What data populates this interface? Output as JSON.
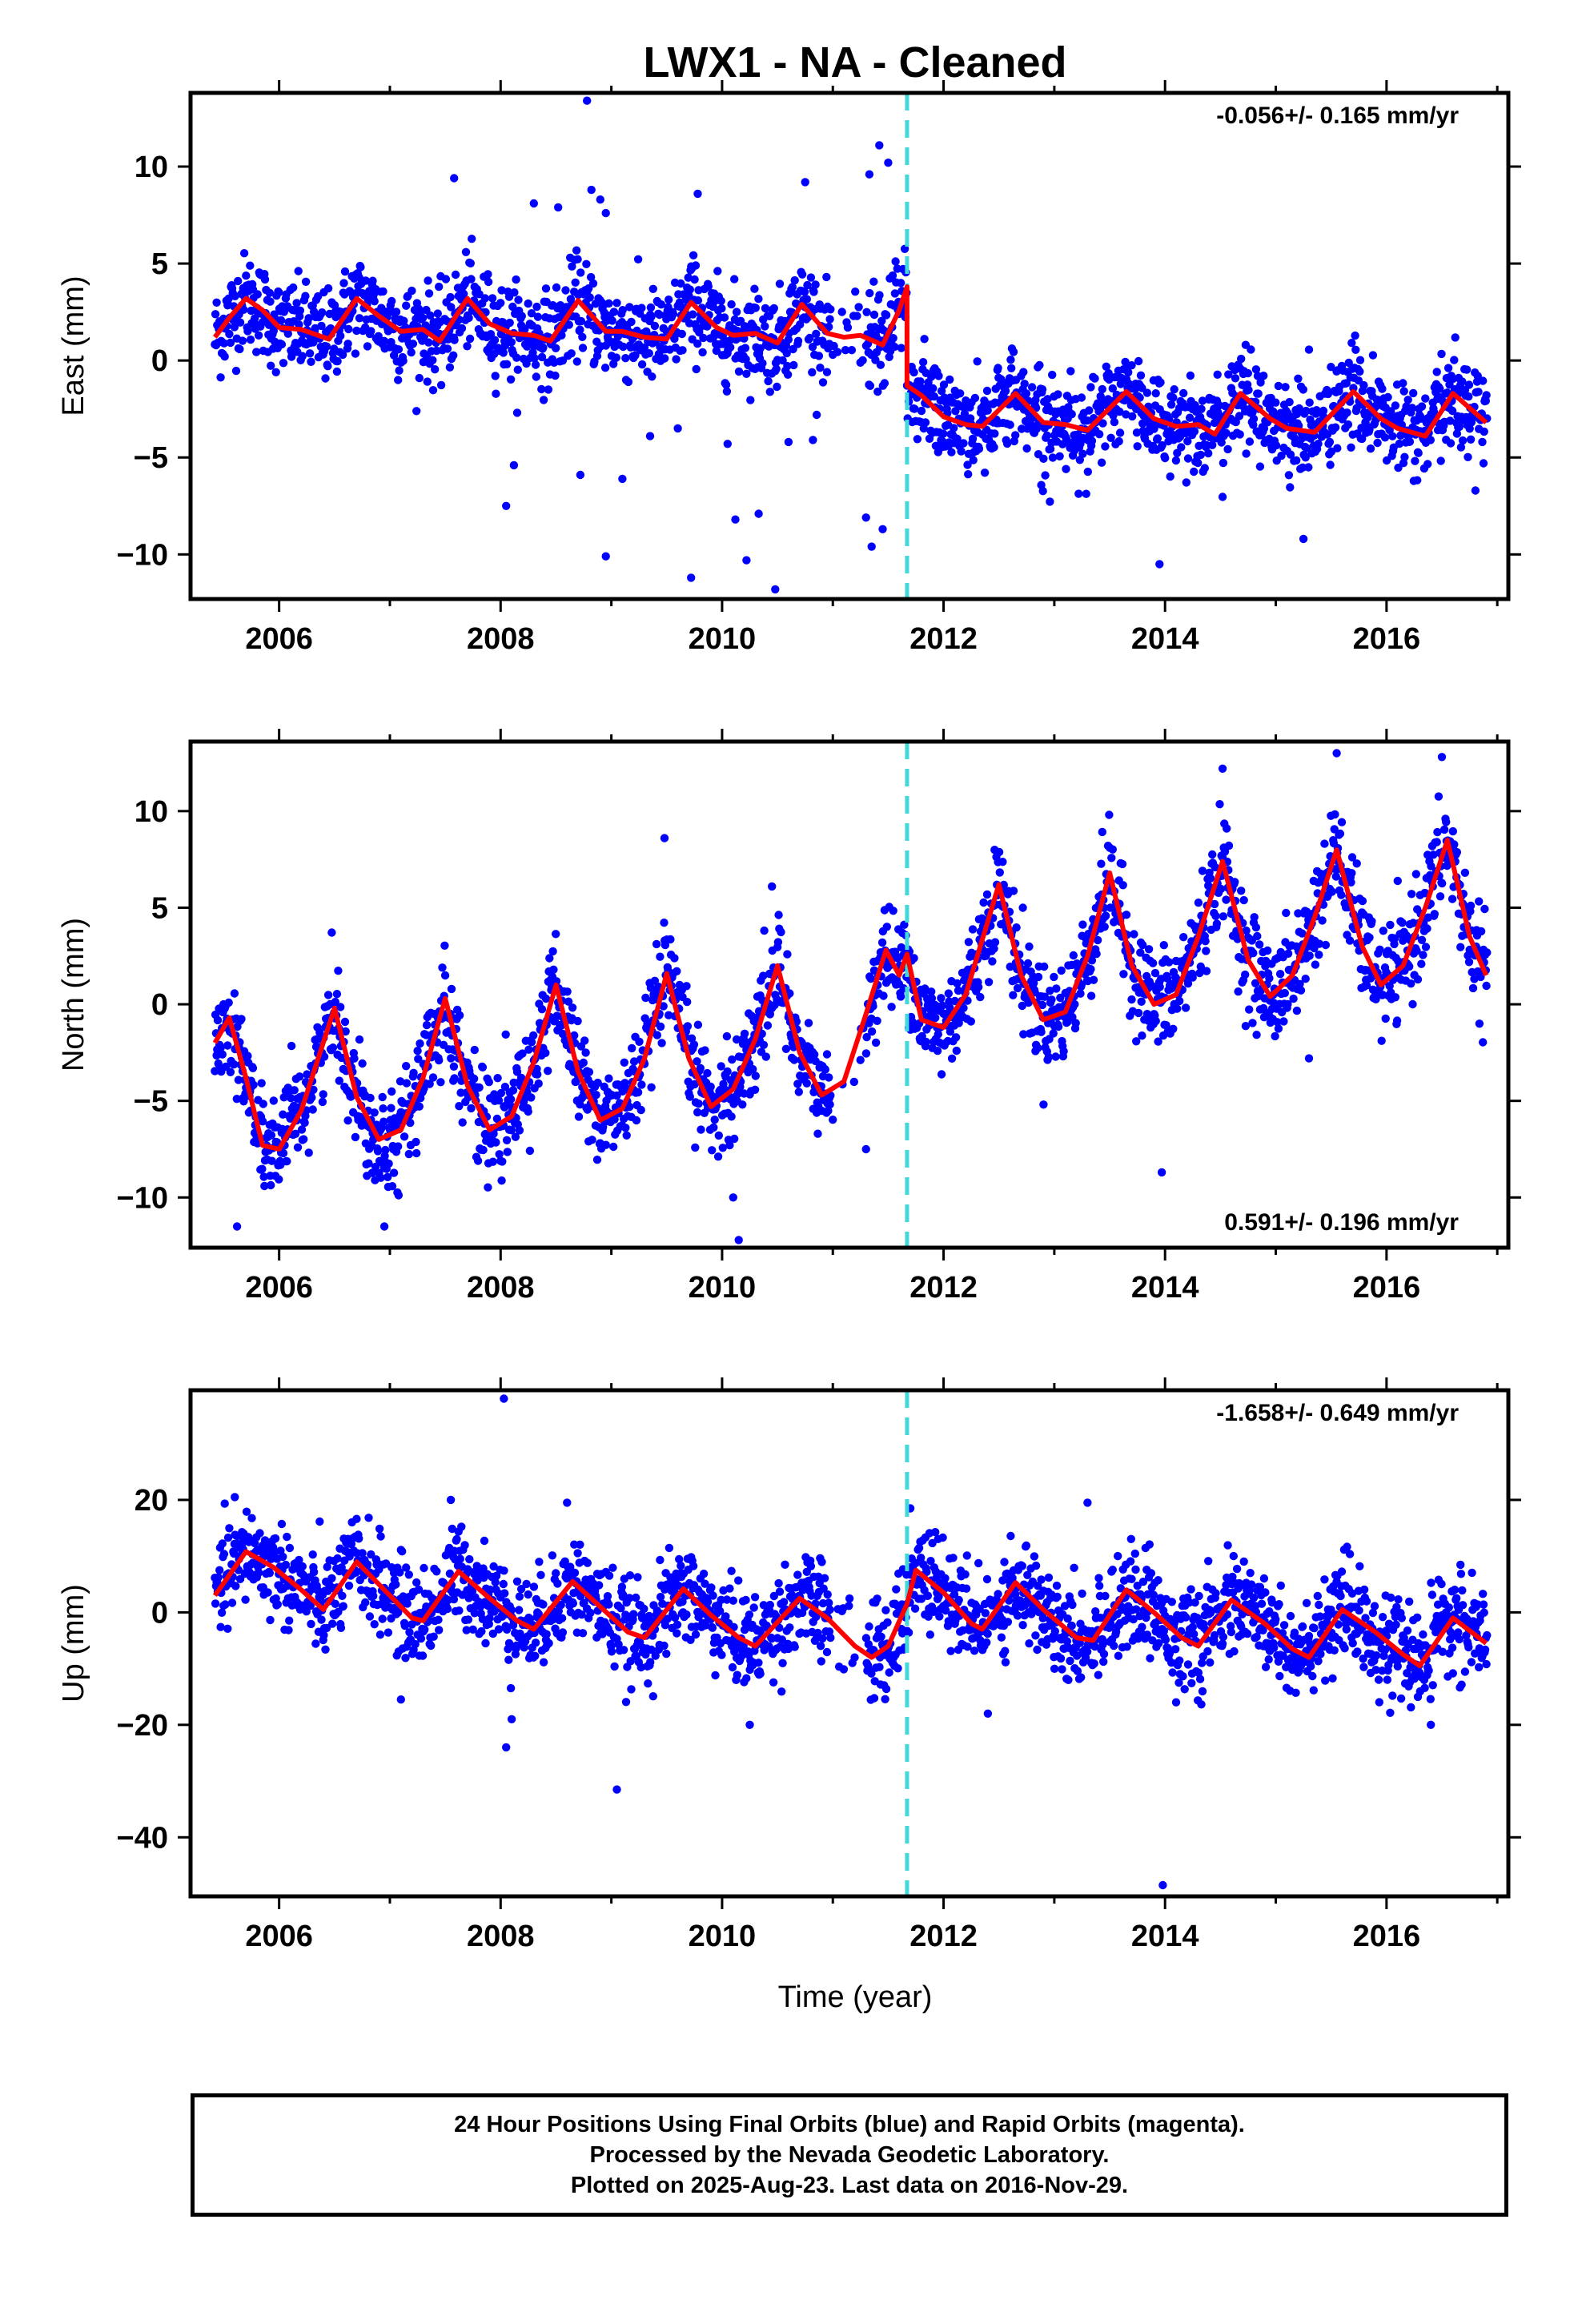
{
  "title": "LWX1  - NA - Cleaned",
  "xlabel": "Time (year)",
  "footer": [
    "24 Hour Positions Using Final Orbits (blue) and Rapid Orbits (magenta).",
    "Processed by the Nevada Geodetic Laboratory.",
    "Plotted on 2025-Aug-23. Last data on 2016-Nov-29."
  ],
  "colors": {
    "points": "#0000ff",
    "model": "#ff0000",
    "event_line": "#40d8d8",
    "frame": "#000000"
  },
  "chart_data": [
    {
      "type": "scatter",
      "panel": "east",
      "ylabel": "East (mm)",
      "rate_label": "-0.056+/- 0.165 mm/yr",
      "rate_label_position": "top-right",
      "xlim": [
        2005.2,
        2017.1
      ],
      "ylim": [
        -12.3,
        13.8
      ],
      "xticks": [
        2006,
        2008,
        2010,
        2012,
        2014,
        2016
      ],
      "yticks": [
        -10,
        -5,
        0,
        5,
        10
      ],
      "event_line_x": 2011.67,
      "series": [
        {
          "name": "Final Orbits",
          "description_of_model": "seasonal fit",
          "model_curve": [
            [
              2005.42,
              1.2
            ],
            [
              2005.55,
              2.2
            ],
            [
              2005.7,
              3.2
            ],
            [
              2005.85,
              2.6
            ],
            [
              2006.0,
              1.7
            ],
            [
              2006.2,
              1.6
            ],
            [
              2006.45,
              1.1
            ],
            [
              2006.7,
              3.2
            ],
            [
              2006.9,
              2.3
            ],
            [
              2007.1,
              1.5
            ],
            [
              2007.3,
              1.6
            ],
            [
              2007.45,
              1.0
            ],
            [
              2007.7,
              3.2
            ],
            [
              2007.9,
              1.9
            ],
            [
              2008.1,
              1.4
            ],
            [
              2008.3,
              1.3
            ],
            [
              2008.45,
              1.0
            ],
            [
              2008.7,
              3.1
            ],
            [
              2008.95,
              1.5
            ],
            [
              2009.1,
              1.5
            ],
            [
              2009.3,
              1.2
            ],
            [
              2009.5,
              1.1
            ],
            [
              2009.72,
              3.0
            ],
            [
              2009.95,
              1.7
            ],
            [
              2010.1,
              1.3
            ],
            [
              2010.3,
              1.4
            ],
            [
              2010.5,
              0.9
            ],
            [
              2010.72,
              2.9
            ],
            [
              2010.95,
              1.4
            ],
            [
              2011.1,
              1.2
            ],
            [
              2011.25,
              1.3
            ],
            [
              2011.45,
              0.8
            ],
            [
              2011.6,
              2.6
            ],
            [
              2011.67,
              3.8
            ],
            [
              2011.67,
              -1.3
            ],
            [
              2011.8,
              -1.8
            ],
            [
              2012.0,
              -2.9
            ],
            [
              2012.2,
              -3.3
            ],
            [
              2012.35,
              -3.4
            ],
            [
              2012.65,
              -1.7
            ],
            [
              2012.9,
              -3.2
            ],
            [
              2013.1,
              -3.3
            ],
            [
              2013.3,
              -3.6
            ],
            [
              2013.65,
              -1.6
            ],
            [
              2013.9,
              -3.0
            ],
            [
              2014.1,
              -3.4
            ],
            [
              2014.3,
              -3.3
            ],
            [
              2014.45,
              -3.8
            ],
            [
              2014.68,
              -1.7
            ],
            [
              2014.95,
              -3.0
            ],
            [
              2015.1,
              -3.5
            ],
            [
              2015.35,
              -3.7
            ],
            [
              2015.7,
              -1.6
            ],
            [
              2015.95,
              -3.0
            ],
            [
              2016.1,
              -3.5
            ],
            [
              2016.35,
              -3.9
            ],
            [
              2016.6,
              -1.7
            ],
            [
              2016.9,
              -3.2
            ]
          ],
          "outliers": [
            [
              2008.78,
              13.4
            ],
            [
              2011.42,
              11.1
            ],
            [
              2011.5,
              10.2
            ],
            [
              2011.33,
              9.6
            ],
            [
              2007.58,
              9.4
            ],
            [
              2008.82,
              8.8
            ],
            [
              2008.9,
              8.3
            ],
            [
              2008.95,
              7.6
            ],
            [
              2009.78,
              8.6
            ],
            [
              2010.75,
              9.2
            ],
            [
              2008.3,
              8.1
            ],
            [
              2008.52,
              7.9
            ],
            [
              2008.05,
              -7.5
            ],
            [
              2008.12,
              -5.4
            ],
            [
              2008.72,
              -5.9
            ],
            [
              2009.1,
              -6.1
            ],
            [
              2008.95,
              -10.1
            ],
            [
              2009.72,
              -11.2
            ],
            [
              2010.05,
              -4.3
            ],
            [
              2010.12,
              -8.2
            ],
            [
              2010.22,
              -10.3
            ],
            [
              2010.33,
              -7.9
            ],
            [
              2010.48,
              -11.8
            ],
            [
              2010.6,
              -4.2
            ],
            [
              2010.82,
              -4.1
            ],
            [
              2011.3,
              -8.1
            ],
            [
              2011.45,
              -8.7
            ],
            [
              2011.35,
              -9.6
            ],
            [
              2013.95,
              -10.5
            ],
            [
              2015.25,
              -9.2
            ],
            [
              2009.35,
              -3.9
            ],
            [
              2009.6,
              -3.5
            ]
          ]
        }
      ]
    },
    {
      "type": "scatter",
      "panel": "north",
      "ylabel": "North (mm)",
      "rate_label": "0.591+/- 0.196 mm/yr",
      "rate_label_position": "bottom-right",
      "xlim": [
        2005.2,
        2017.1
      ],
      "ylim": [
        -12.6,
        13.6
      ],
      "xticks": [
        2006,
        2008,
        2010,
        2012,
        2014,
        2016
      ],
      "yticks": [
        -10,
        -5,
        0,
        5,
        10
      ],
      "event_line_x": 2011.67,
      "series": [
        {
          "name": "Final Orbits",
          "model_curve": [
            [
              2005.42,
              -2.0
            ],
            [
              2005.55,
              -0.7
            ],
            [
              2005.7,
              -3.8
            ],
            [
              2005.85,
              -7.3
            ],
            [
              2006.0,
              -7.5
            ],
            [
              2006.2,
              -5.5
            ],
            [
              2006.5,
              -0.2
            ],
            [
              2006.7,
              -4.8
            ],
            [
              2006.9,
              -7.0
            ],
            [
              2007.1,
              -6.5
            ],
            [
              2007.3,
              -3.8
            ],
            [
              2007.5,
              0.3
            ],
            [
              2007.7,
              -4.2
            ],
            [
              2007.9,
              -6.5
            ],
            [
              2008.1,
              -5.8
            ],
            [
              2008.3,
              -3.0
            ],
            [
              2008.5,
              1.0
            ],
            [
              2008.7,
              -3.5
            ],
            [
              2008.9,
              -6.0
            ],
            [
              2009.1,
              -5.4
            ],
            [
              2009.3,
              -2.8
            ],
            [
              2009.5,
              1.6
            ],
            [
              2009.7,
              -2.8
            ],
            [
              2009.9,
              -5.3
            ],
            [
              2010.1,
              -4.4
            ],
            [
              2010.3,
              -1.8
            ],
            [
              2010.5,
              2.0
            ],
            [
              2010.7,
              -2.5
            ],
            [
              2010.9,
              -4.7
            ],
            [
              2011.1,
              -4.0
            ],
            [
              2011.3,
              -0.5
            ],
            [
              2011.48,
              2.8
            ],
            [
              2011.6,
              1.5
            ],
            [
              2011.67,
              2.6
            ],
            [
              2011.8,
              -0.8
            ],
            [
              2012.0,
              -1.2
            ],
            [
              2012.2,
              0.5
            ],
            [
              2012.5,
              6.2
            ],
            [
              2012.7,
              1.5
            ],
            [
              2012.9,
              -0.8
            ],
            [
              2013.1,
              -0.4
            ],
            [
              2013.3,
              2.5
            ],
            [
              2013.5,
              6.8
            ],
            [
              2013.7,
              2.0
            ],
            [
              2013.9,
              0.0
            ],
            [
              2014.1,
              0.5
            ],
            [
              2014.3,
              3.5
            ],
            [
              2014.52,
              7.4
            ],
            [
              2014.75,
              2.3
            ],
            [
              2014.95,
              0.4
            ],
            [
              2015.15,
              1.5
            ],
            [
              2015.35,
              4.5
            ],
            [
              2015.55,
              8.0
            ],
            [
              2015.78,
              3.0
            ],
            [
              2015.95,
              1.0
            ],
            [
              2016.15,
              2.0
            ],
            [
              2016.35,
              5.0
            ],
            [
              2016.55,
              8.5
            ],
            [
              2016.75,
              3.5
            ],
            [
              2016.9,
              1.5
            ]
          ],
          "outliers": [
            [
              2009.48,
              8.6
            ],
            [
              2010.45,
              6.1
            ],
            [
              2014.52,
              12.2
            ],
            [
              2015.55,
              13.0
            ],
            [
              2016.5,
              12.8
            ],
            [
              2013.97,
              -8.7
            ],
            [
              2010.15,
              -12.2
            ],
            [
              2010.1,
              -10.0
            ],
            [
              2005.62,
              -11.5
            ],
            [
              2006.95,
              -11.5
            ],
            [
              2015.3,
              -2.8
            ],
            [
              2011.3,
              -7.5
            ]
          ]
        }
      ]
    },
    {
      "type": "scatter",
      "panel": "up",
      "ylabel": "Up (mm)",
      "rate_label": "-1.658+/- 0.649 mm/yr",
      "rate_label_position": "top-right",
      "xlim": [
        2005.2,
        2017.1
      ],
      "ylim": [
        -50.5,
        39.5
      ],
      "xticks": [
        2006,
        2008,
        2010,
        2012,
        2014,
        2016
      ],
      "yticks": [
        -40,
        -20,
        0,
        20
      ],
      "event_line_x": 2011.67,
      "series": [
        {
          "name": "Final Orbits",
          "model_curve": [
            [
              2005.42,
              3.0
            ],
            [
              2005.7,
              10.8
            ],
            [
              2005.95,
              8.0
            ],
            [
              2006.2,
              4.0
            ],
            [
              2006.4,
              0.5
            ],
            [
              2006.7,
              9.0
            ],
            [
              2006.95,
              4.0
            ],
            [
              2007.2,
              -1.0
            ],
            [
              2007.3,
              -1.5
            ],
            [
              2007.62,
              7.3
            ],
            [
              2007.9,
              2.5
            ],
            [
              2008.15,
              -1.5
            ],
            [
              2008.3,
              -3.0
            ],
            [
              2008.65,
              5.5
            ],
            [
              2008.9,
              1.0
            ],
            [
              2009.15,
              -3.5
            ],
            [
              2009.3,
              -4.5
            ],
            [
              2009.65,
              4.2
            ],
            [
              2009.9,
              -0.5
            ],
            [
              2010.15,
              -4.5
            ],
            [
              2010.3,
              -6.0
            ],
            [
              2010.7,
              2.5
            ],
            [
              2010.95,
              -1.0
            ],
            [
              2011.2,
              -6.0
            ],
            [
              2011.35,
              -8.0
            ],
            [
              2011.5,
              -6.0
            ],
            [
              2011.67,
              1.5
            ],
            [
              2011.75,
              7.5
            ],
            [
              2012.0,
              3.5
            ],
            [
              2012.25,
              -2.0
            ],
            [
              2012.35,
              -3.0
            ],
            [
              2012.65,
              5.3
            ],
            [
              2012.9,
              0.5
            ],
            [
              2013.2,
              -4.5
            ],
            [
              2013.35,
              -5.0
            ],
            [
              2013.65,
              4.0
            ],
            [
              2013.9,
              0.0
            ],
            [
              2014.15,
              -4.5
            ],
            [
              2014.3,
              -6.0
            ],
            [
              2014.6,
              2.2
            ],
            [
              2014.9,
              -2.0
            ],
            [
              2015.15,
              -6.5
            ],
            [
              2015.3,
              -8.0
            ],
            [
              2015.6,
              0.5
            ],
            [
              2015.9,
              -3.5
            ],
            [
              2016.15,
              -7.5
            ],
            [
              2016.3,
              -9.5
            ],
            [
              2016.6,
              -1.0
            ],
            [
              2016.9,
              -5.5
            ]
          ],
          "outliers": [
            [
              2008.03,
              38.0
            ],
            [
              2008.1,
              -19.0
            ],
            [
              2008.05,
              -24.0
            ],
            [
              2009.05,
              -31.5
            ],
            [
              2013.98,
              -48.5
            ],
            [
              2007.1,
              -15.5
            ],
            [
              2010.25,
              -20.0
            ],
            [
              2014.1,
              -16.0
            ],
            [
              2016.4,
              -20.0
            ],
            [
              2012.4,
              -18.0
            ],
            [
              2005.6,
              20.5
            ],
            [
              2007.55,
              20.0
            ],
            [
              2008.6,
              19.5
            ],
            [
              2013.3,
              19.5
            ],
            [
              2011.7,
              18.5
            ]
          ]
        }
      ]
    }
  ]
}
